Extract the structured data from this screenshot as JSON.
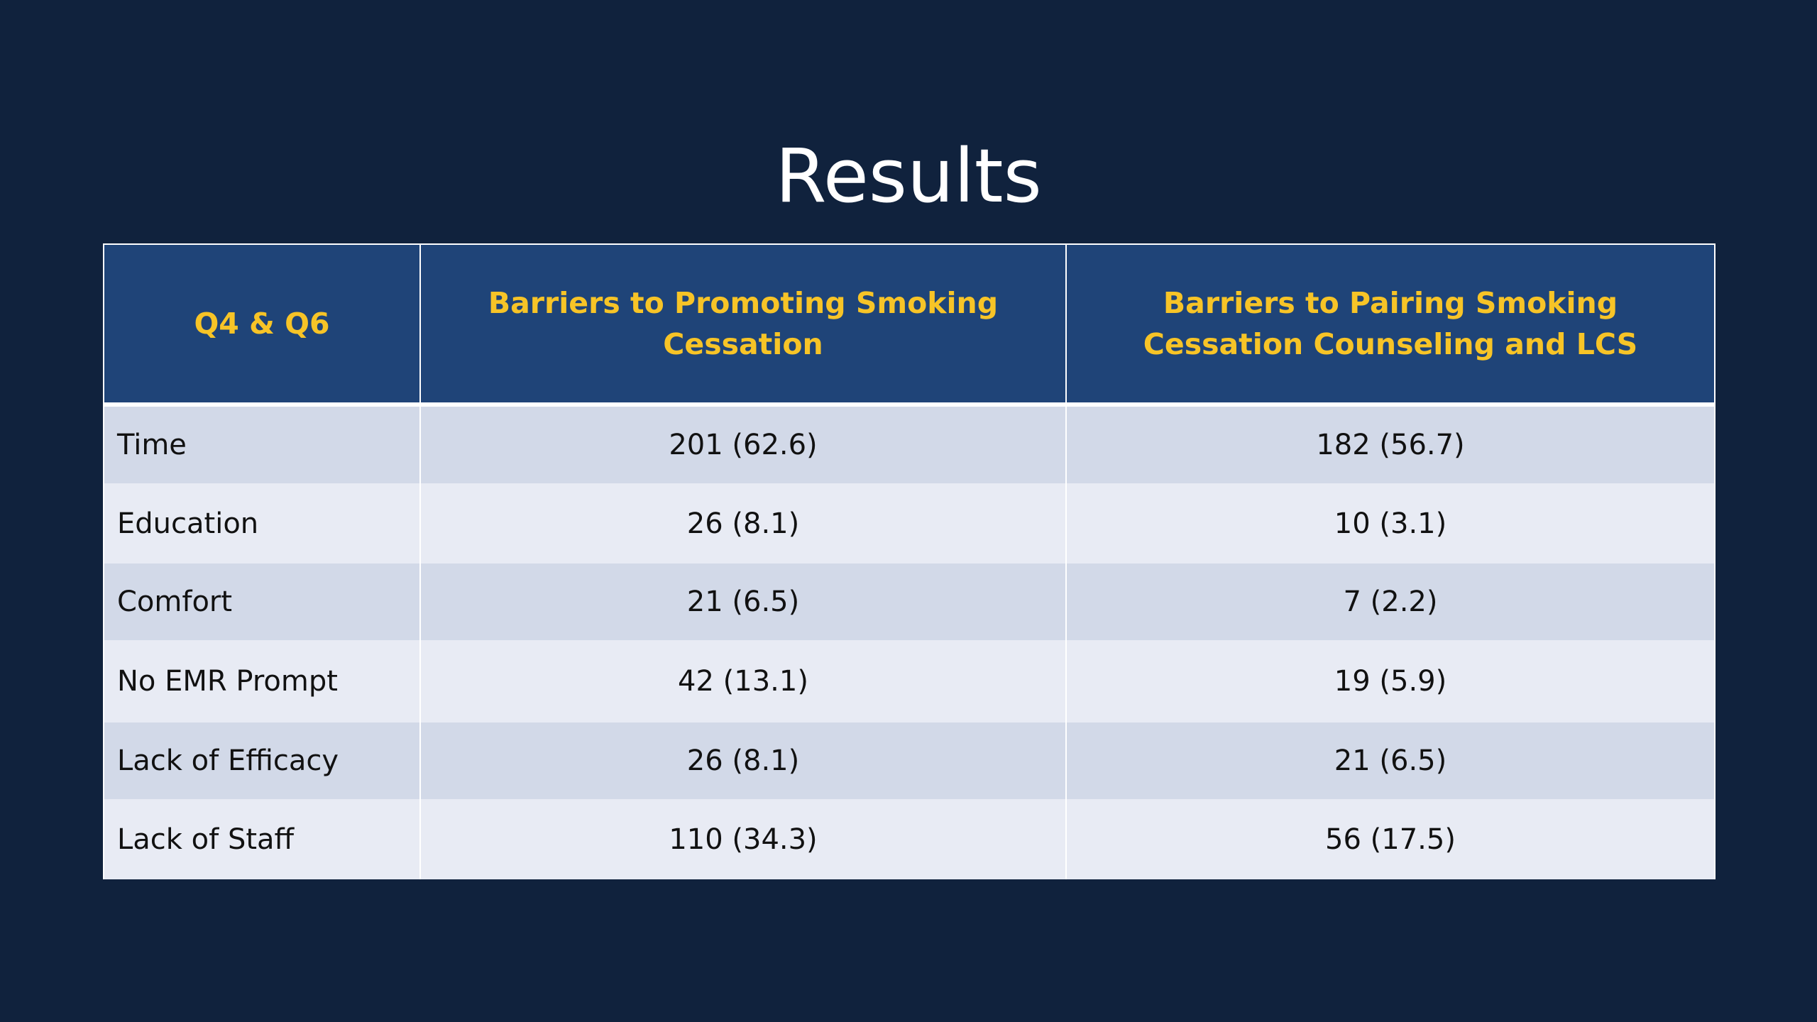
{
  "slide": {
    "title": "Results"
  },
  "table": {
    "headers": [
      "Q4 & Q6",
      "Barriers to Promoting Smoking Cessation",
      "Barriers to Pairing Smoking Cessation Counseling and LCS"
    ],
    "rows": [
      {
        "label": "Time",
        "promoting": "201 (62.6)",
        "pairing": "182 (56.7)"
      },
      {
        "label": "Education",
        "promoting": "26 (8.1)",
        "pairing": "10 (3.1)"
      },
      {
        "label": "Comfort",
        "promoting": "21 (6.5)",
        "pairing": "7 (2.2)"
      },
      {
        "label": "No EMR Prompt",
        "promoting": "42 (13.1)",
        "pairing": "19 (5.9)"
      },
      {
        "label": "Lack of Efficacy",
        "promoting": "26 (8.1)",
        "pairing": "21 (6.5)"
      },
      {
        "label": "Lack of Staff",
        "promoting": "110 (34.3)",
        "pairing": "56 (17.5)"
      }
    ]
  },
  "colors": {
    "background": "#10223d",
    "header_fill": "#1f4478",
    "header_text": "#f7c427",
    "row_odd": "#d2d9e8",
    "row_even": "#e8ebf4"
  }
}
